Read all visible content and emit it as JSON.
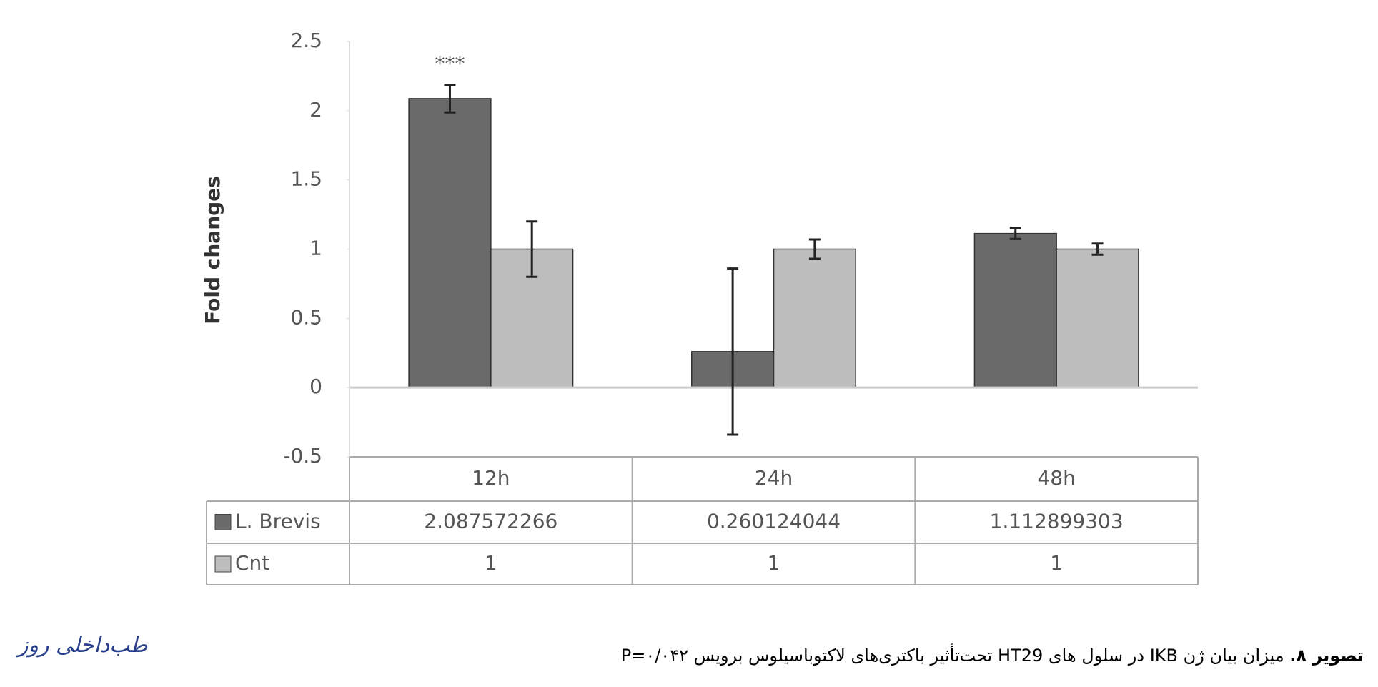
{
  "chart_data": {
    "type": "bar",
    "y_label": "Fold changes",
    "categories": [
      "12h",
      "24h",
      "48h"
    ],
    "series": [
      {
        "name": "L. Brevis",
        "color": "#6a6a6a",
        "values": [
          2.087572266,
          0.260124044,
          1.112899303
        ],
        "errors": [
          0.1,
          0.6,
          0.04
        ]
      },
      {
        "name": "Cnt",
        "color": "#bdbdbd",
        "values": [
          1,
          1,
          1
        ],
        "errors": [
          0.2,
          0.07,
          0.04
        ]
      }
    ],
    "annotation": "***",
    "ylim": [
      -0.5,
      2.5
    ],
    "yticks": [
      -0.5,
      0,
      0.5,
      1,
      1.5,
      2,
      2.5
    ],
    "grid": false
  },
  "caption": {
    "label": "تصویر ۸.",
    "text": "میزان بیان ژن IKB در سلول های HT29 تحت‌تأثیر باکتری‌های لاکتوباسیلوس برویس P=۰/۰۴۲"
  },
  "logo": "طب‌داخلی روز"
}
